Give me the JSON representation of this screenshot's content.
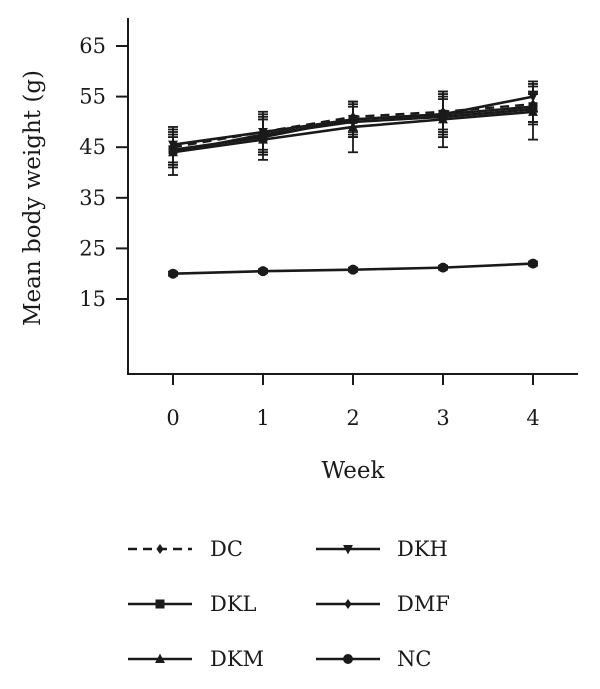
{
  "chart_data": {
    "type": "line",
    "xlabel": "Week",
    "ylabel": "Mean body weight (g)",
    "x": [
      0,
      1,
      2,
      3,
      4
    ],
    "xlim": [
      -0.5,
      4.5
    ],
    "ylim": [
      3,
      73
    ],
    "yticks": [
      15,
      25,
      35,
      45,
      55,
      65
    ],
    "grid": false,
    "legend_position": "bottom",
    "series": [
      {
        "name": "DC",
        "values": [
          45.0,
          48.0,
          51.0,
          52.0,
          53.5
        ],
        "error": [
          3.0,
          3.5,
          3.0,
          3.5,
          3.5
        ],
        "marker": "diamond",
        "dashed": true
      },
      {
        "name": "DKL",
        "values": [
          44.5,
          47.0,
          50.5,
          51.5,
          53.0
        ],
        "error": [
          3.0,
          3.5,
          3.0,
          3.5,
          3.0
        ],
        "marker": "square",
        "dashed": false
      },
      {
        "name": "DKM",
        "values": [
          44.0,
          46.5,
          49.0,
          50.5,
          52.0
        ],
        "error": [
          4.5,
          4.0,
          5.0,
          5.5,
          5.5
        ],
        "marker": "triangle-up",
        "dashed": false
      },
      {
        "name": "DKH",
        "values": [
          45.5,
          48.0,
          50.5,
          51.5,
          55.0
        ],
        "error": [
          3.5,
          4.0,
          3.5,
          4.5,
          3.0
        ],
        "marker": "triangle-down",
        "dashed": false
      },
      {
        "name": "DMF",
        "values": [
          44.0,
          47.5,
          50.0,
          51.0,
          52.5
        ],
        "error": [
          3.0,
          3.5,
          3.0,
          3.5,
          3.0
        ],
        "marker": "diamond",
        "dashed": false
      },
      {
        "name": "NC",
        "values": [
          20.0,
          20.5,
          20.8,
          21.2,
          22.0
        ],
        "error": [
          0.4,
          0.4,
          0.4,
          0.4,
          0.4
        ],
        "marker": "circle",
        "dashed": false
      }
    ]
  }
}
